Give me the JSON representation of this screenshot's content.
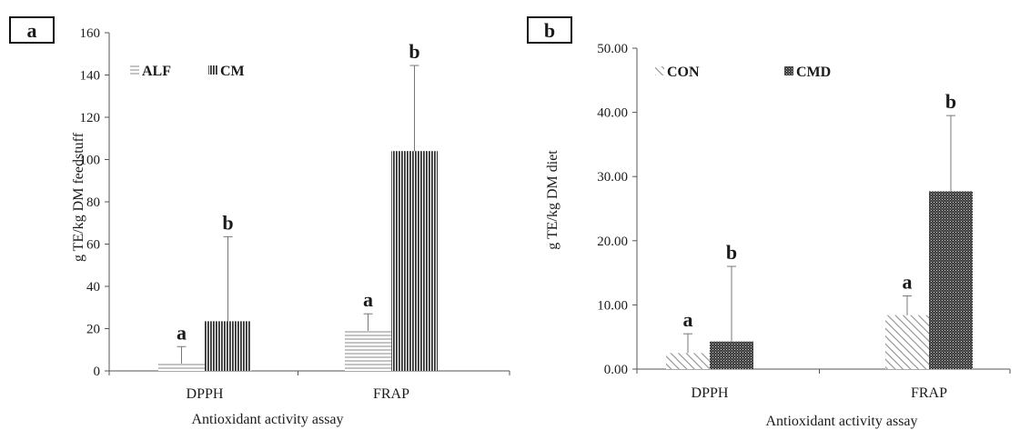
{
  "chart_data": [
    {
      "type": "bar",
      "panel_label": "a",
      "categories": [
        "DPPH",
        "FRAP"
      ],
      "series": [
        {
          "name": "ALF",
          "values": [
            3.5,
            19
          ],
          "errors": [
            8,
            8
          ],
          "letters": [
            "a",
            "a"
          ],
          "pattern": "horizontal"
        },
        {
          "name": "CM",
          "values": [
            23.5,
            104
          ],
          "errors": [
            40,
            40.5
          ],
          "letters": [
            "b",
            "b"
          ],
          "pattern": "vertical"
        }
      ],
      "xlabel": "Antioxidant activity assay",
      "ylabel": "g TE/kg DM feedstuff",
      "ylim": [
        0,
        160
      ],
      "yticks": [
        0,
        20,
        40,
        60,
        80,
        100,
        120,
        140,
        160
      ],
      "ytick_labels": [
        "0",
        "20",
        "40",
        "60",
        "80",
        "100",
        "120",
        "140",
        "160"
      ],
      "legend": [
        "ALF",
        "CM"
      ],
      "legend_position": "top-left",
      "grid": false
    },
    {
      "type": "bar",
      "panel_label": "b",
      "categories": [
        "DPPH",
        "FRAP"
      ],
      "series": [
        {
          "name": "CON",
          "values": [
            2.5,
            8.4
          ],
          "errors": [
            3,
            3
          ],
          "letters": [
            "a",
            "a"
          ],
          "pattern": "diagonal"
        },
        {
          "name": "CMD",
          "values": [
            4.3,
            27.7
          ],
          "errors": [
            11.7,
            11.8
          ],
          "letters": [
            "b",
            "b"
          ],
          "pattern": "dots"
        }
      ],
      "xlabel": "Antioxidant activity assay",
      "ylabel": "g TE/kg DM diet",
      "ylim": [
        0,
        50
      ],
      "yticks": [
        0,
        10,
        20,
        30,
        40,
        50
      ],
      "ytick_labels": [
        "0.00",
        "10.00",
        "20.00",
        "30.00",
        "40.00",
        "50.00"
      ],
      "legend": [
        "CON",
        "CMD"
      ],
      "legend_position": "top-left",
      "grid": false
    }
  ]
}
